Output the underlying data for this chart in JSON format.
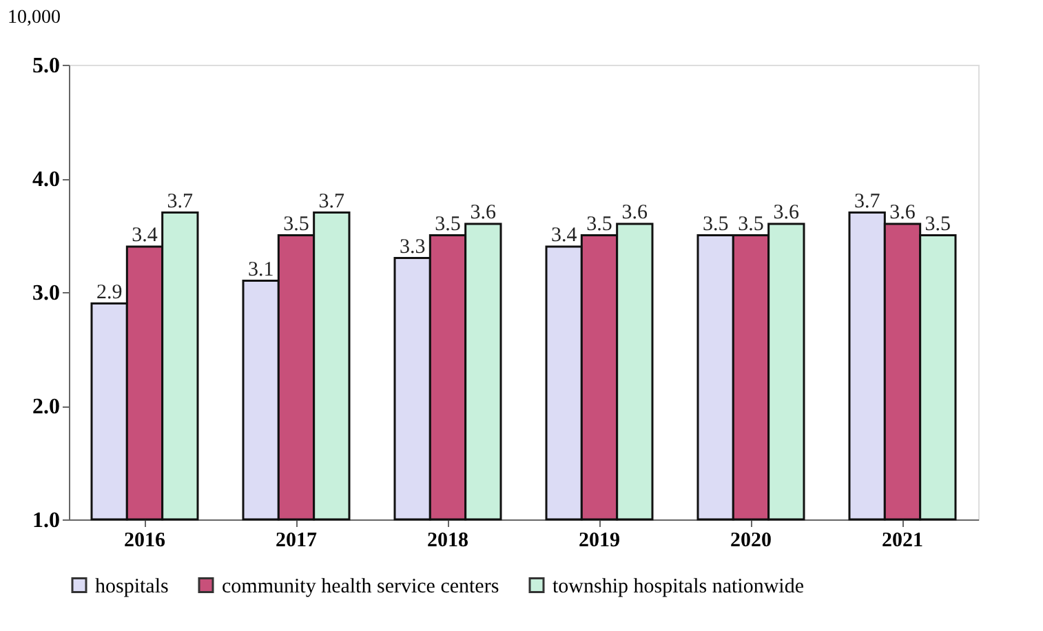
{
  "chart_data": {
    "type": "bar",
    "ylabel": "10,000",
    "categories": [
      "2016",
      "2017",
      "2018",
      "2019",
      "2020",
      "2021"
    ],
    "series": [
      {
        "name": "hospitals",
        "color": "#dcdcf5",
        "values": [
          2.9,
          3.1,
          3.3,
          3.4,
          3.5,
          3.7
        ]
      },
      {
        "name": "community health service centers",
        "color": "#c8507a",
        "values": [
          3.4,
          3.5,
          3.5,
          3.5,
          3.5,
          3.6
        ]
      },
      {
        "name": "township hospitals nationwide",
        "color": "#c8f0dc",
        "values": [
          3.7,
          3.7,
          3.6,
          3.6,
          3.6,
          3.5
        ]
      }
    ],
    "ylim": [
      1.0,
      5.0
    ],
    "yticks": [
      {
        "value": 1.0,
        "label": "1.0"
      },
      {
        "value": 2.0,
        "label": "2.0"
      },
      {
        "value": 3.0,
        "label": "3.0"
      },
      {
        "value": 4.0,
        "label": "4.0"
      },
      {
        "value": 5.0,
        "label": "5.0"
      }
    ],
    "data_labels": true,
    "grid": false,
    "legend": "bottom"
  }
}
